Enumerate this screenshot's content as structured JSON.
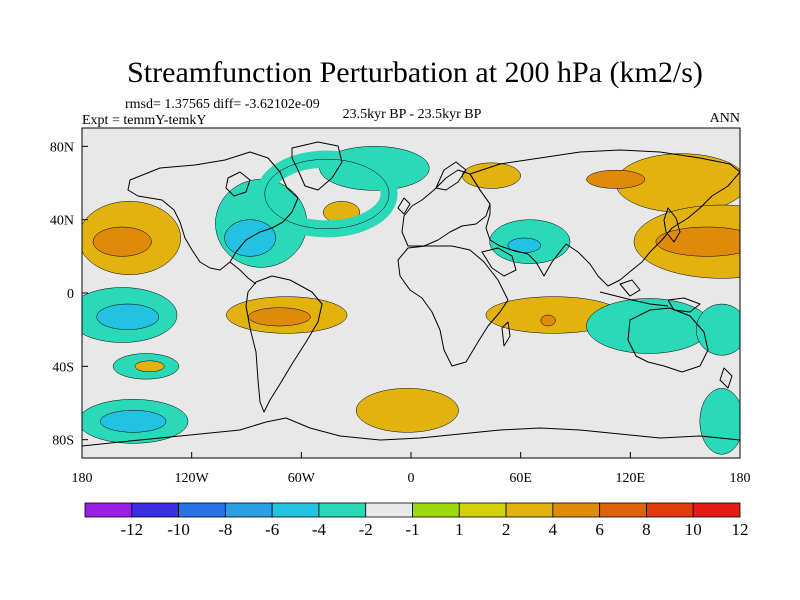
{
  "chart_data": {
    "type": "heatmap",
    "title": "Streamfunction Perturbation at 200 hPa (km2/s)",
    "rmsd_text": "rmsd= 1.37565 diff= -3.62102e-09",
    "expt_text": "Expt = temmY-temkY",
    "period_text": "23.5kyr BP - 23.5kyr BP",
    "season_text": "ANN",
    "x_ticks": [
      {
        "lon": -180,
        "label": "180"
      },
      {
        "lon": -120,
        "label": "120W"
      },
      {
        "lon": -60,
        "label": "60W"
      },
      {
        "lon": 0,
        "label": "0"
      },
      {
        "lon": 60,
        "label": "60E"
      },
      {
        "lon": 120,
        "label": "120E"
      },
      {
        "lon": 180,
        "label": "180"
      }
    ],
    "y_ticks": [
      {
        "lat": 80,
        "label": "80N"
      },
      {
        "lat": 40,
        "label": "40N"
      },
      {
        "lat": 0,
        "label": "0"
      },
      {
        "lat": -40,
        "label": "40S"
      },
      {
        "lat": -80,
        "label": "80S"
      }
    ],
    "xlim": [
      -180,
      180
    ],
    "ylim": [
      -90,
      90
    ],
    "colorbar": {
      "colors": [
        "#9a1fe5",
        "#3a2ee0",
        "#2672e6",
        "#2b9fe6",
        "#23c2e2",
        "#2ad9b8",
        "#e8e8e8",
        "#9ed90e",
        "#d2d20c",
        "#e2b20e",
        "#e08a0c",
        "#e0620a",
        "#e43a0c",
        "#e41a16"
      ],
      "labels": [
        "-12",
        "-10",
        "-8",
        "-6",
        "-4",
        "-2",
        "-1",
        "1",
        "2",
        "4",
        "6",
        "8",
        "10",
        "12"
      ]
    },
    "anomaly_regions": [
      {
        "value": 2,
        "lon": 148,
        "lat": 60,
        "rx": 36,
        "ry": 16
      },
      {
        "value": 4,
        "lon": 112,
        "lat": 62,
        "rx": 16,
        "ry": 5
      },
      {
        "value": 2,
        "lon": 170,
        "lat": 28,
        "rx": 48,
        "ry": 20
      },
      {
        "value": 4,
        "lon": 162,
        "lat": 28,
        "rx": 28,
        "ry": 8
      },
      {
        "value": 2,
        "lon": -154,
        "lat": 30,
        "rx": 28,
        "ry": 20
      },
      {
        "value": 4,
        "lon": -158,
        "lat": 28,
        "rx": 16,
        "ry": 8
      },
      {
        "value": -2,
        "lon": -158,
        "lat": -12,
        "rx": 30,
        "ry": 15
      },
      {
        "value": -4,
        "lon": -155,
        "lat": -13,
        "rx": 17,
        "ry": 7
      },
      {
        "value": -2,
        "lon": -82,
        "lat": 38,
        "rx": 25,
        "ry": 24
      },
      {
        "value": -4,
        "lon": -88,
        "lat": 30,
        "rx": 14,
        "ry": 10
      },
      {
        "value": -2,
        "lon": -20,
        "lat": 68,
        "rx": 30,
        "ry": 12
      },
      {
        "value": -2,
        "lon": 65,
        "lat": 28,
        "rx": 22,
        "ry": 12
      },
      {
        "value": -4,
        "lon": 62,
        "lat": 26,
        "rx": 9,
        "ry": 4
      },
      {
        "value": 2,
        "lon": 44,
        "lat": 64,
        "rx": 16,
        "ry": 7
      },
      {
        "value": 2,
        "lon": -38,
        "lat": 44,
        "rx": 10,
        "ry": 6
      },
      {
        "value": 2,
        "lon": -68,
        "lat": -12,
        "rx": 33,
        "ry": 10
      },
      {
        "value": 4,
        "lon": -72,
        "lat": -13,
        "rx": 17,
        "ry": 5
      },
      {
        "value": 2,
        "lon": 78,
        "lat": -12,
        "rx": 37,
        "ry": 10
      },
      {
        "value": 4,
        "lon": 75,
        "lat": -15,
        "rx": 4,
        "ry": 3
      },
      {
        "value": -2,
        "lon": 130,
        "lat": -18,
        "rx": 34,
        "ry": 15
      },
      {
        "value": -2,
        "lon": 170,
        "lat": -20,
        "rx": 14,
        "ry": 14
      },
      {
        "value": -2,
        "lon": -145,
        "lat": -40,
        "rx": 18,
        "ry": 7
      },
      {
        "value": 2,
        "lon": -143,
        "lat": -40,
        "rx": 8,
        "ry": 3
      },
      {
        "value": -2,
        "lon": -152,
        "lat": -70,
        "rx": 30,
        "ry": 12
      },
      {
        "value": -4,
        "lon": -152,
        "lat": -70,
        "rx": 18,
        "ry": 6
      },
      {
        "value": 2,
        "lon": -2,
        "lat": -64,
        "rx": 28,
        "ry": 12
      },
      {
        "value": -2,
        "lon": 170,
        "lat": -70,
        "rx": 12,
        "ry": 18
      }
    ],
    "closed_contours": [
      {
        "value": -1,
        "lon": -46,
        "lat": 54,
        "rx": 34,
        "ry": 19
      }
    ]
  }
}
